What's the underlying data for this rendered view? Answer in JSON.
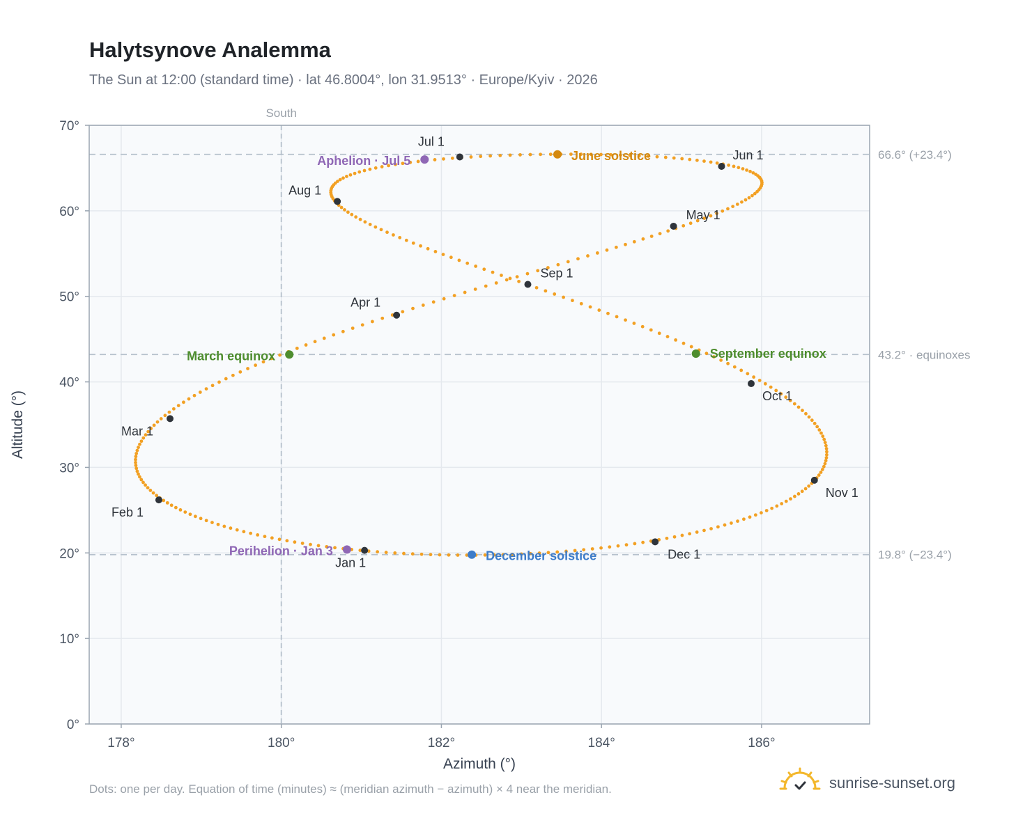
{
  "header": {
    "title": "Halytsynove Analemma",
    "subtitle": "The Sun at 12:00 (standard time) · lat 46.8004°, lon 31.9513° · Europe/Kyiv · 2026"
  },
  "footer": {
    "note": "Dots: one per day. Equation of time (minutes) ≈ (meridian azimuth − azimuth) × 4 near the meridian.",
    "brand": "sunrise-sunset.org"
  },
  "colors": {
    "curve": "#f2a023",
    "month_marker": "#2f343b",
    "june_solstice": "#d4890f",
    "december_solstice": "#3d7cc9",
    "equinox": "#4e8d2e",
    "apsis": "#8f67b5",
    "reference_line": "#b6c1cc",
    "plot_bg": "#f8fafc",
    "frame": "#9aa5b1"
  },
  "chart_data": {
    "type": "scatter",
    "xlabel": "Azimuth (°)",
    "ylabel": "Altitude (°)",
    "xlim": [
      177.6,
      187.35
    ],
    "ylim": [
      0,
      70
    ],
    "x_ticks": [
      178,
      180,
      182,
      184,
      186
    ],
    "x_tick_labels": [
      "178°",
      "180°",
      "182°",
      "184°",
      "186°"
    ],
    "y_ticks": [
      0,
      10,
      20,
      30,
      40,
      50,
      60,
      70
    ],
    "y_tick_labels": [
      "0°",
      "10°",
      "20°",
      "30°",
      "40°",
      "50°",
      "60°",
      "70°"
    ],
    "grid": true,
    "meridian": {
      "azimuth": 180,
      "label": "South"
    },
    "reference_lines": [
      {
        "altitude": 66.6,
        "label": "66.6° (+23.4°)"
      },
      {
        "altitude": 43.2,
        "label": "43.2° · equinoxes"
      },
      {
        "altitude": 19.8,
        "label": "19.8° (−23.4°)"
      }
    ],
    "month_markers": [
      {
        "label": "Jan 1",
        "azimuth": 181.04,
        "altitude": 20.3
      },
      {
        "label": "Feb 1",
        "azimuth": 178.47,
        "altitude": 26.2
      },
      {
        "label": "Mar 1",
        "azimuth": 178.61,
        "altitude": 35.7
      },
      {
        "label": "Apr 1",
        "azimuth": 181.44,
        "altitude": 47.8
      },
      {
        "label": "May 1",
        "azimuth": 184.9,
        "altitude": 58.2
      },
      {
        "label": "Jun 1",
        "azimuth": 185.5,
        "altitude": 65.2
      },
      {
        "label": "Jul 1",
        "azimuth": 182.23,
        "altitude": 66.3
      },
      {
        "label": "Aug 1",
        "azimuth": 180.7,
        "altitude": 61.1
      },
      {
        "label": "Sep 1",
        "azimuth": 183.08,
        "altitude": 51.4
      },
      {
        "label": "Oct 1",
        "azimuth": 185.87,
        "altitude": 39.8
      },
      {
        "label": "Nov 1",
        "azimuth": 186.66,
        "altitude": 28.5
      },
      {
        "label": "Dec 1",
        "azimuth": 184.67,
        "altitude": 21.3
      }
    ],
    "events": [
      {
        "label": "June solstice",
        "azimuth": 183.45,
        "altitude": 66.6,
        "kind": "june_solstice"
      },
      {
        "label": "December solstice",
        "azimuth": 182.38,
        "altitude": 19.8,
        "kind": "december_solstice"
      },
      {
        "label": "March equinox",
        "azimuth": 180.1,
        "altitude": 43.2,
        "kind": "equinox"
      },
      {
        "label": "September equinox",
        "azimuth": 185.18,
        "altitude": 43.3,
        "kind": "equinox"
      },
      {
        "label": "Aphelion · Jul 5",
        "azimuth": 181.79,
        "altitude": 66.0,
        "kind": "apsis"
      },
      {
        "label": "Perihelion · Jan 3",
        "azimuth": 180.82,
        "altitude": 20.4,
        "kind": "apsis"
      }
    ]
  }
}
